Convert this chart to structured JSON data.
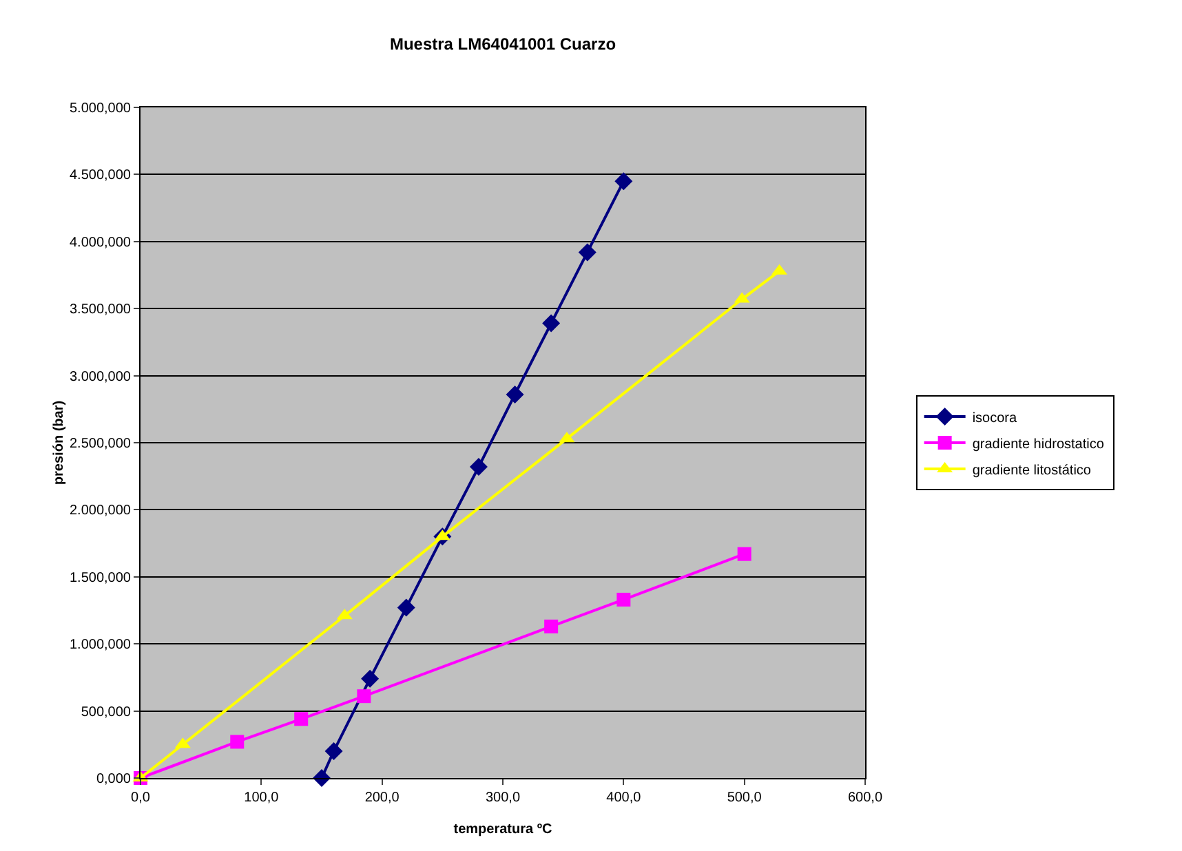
{
  "chart_data": {
    "type": "line",
    "title": "Muestra LM64041001 Cuarzo",
    "xlabel": "temperatura ºC",
    "ylabel": "presión (bar)",
    "xlim": [
      0,
      600
    ],
    "ylim": [
      0,
      5000
    ],
    "xticks": [
      {
        "value": 0,
        "label": "0,0"
      },
      {
        "value": 100,
        "label": "100,0"
      },
      {
        "value": 200,
        "label": "200,0"
      },
      {
        "value": 300,
        "label": "300,0"
      },
      {
        "value": 400,
        "label": "400,0"
      },
      {
        "value": 500,
        "label": "500,0"
      },
      {
        "value": 600,
        "label": "600,0"
      }
    ],
    "yticks": [
      {
        "value": 0,
        "label": "0,000"
      },
      {
        "value": 500,
        "label": "500,000"
      },
      {
        "value": 1000,
        "label": "1.000,000"
      },
      {
        "value": 1500,
        "label": "1.500,000"
      },
      {
        "value": 2000,
        "label": "2.000,000"
      },
      {
        "value": 2500,
        "label": "2.500,000"
      },
      {
        "value": 3000,
        "label": "3.000,000"
      },
      {
        "value": 3500,
        "label": "3.500,000"
      },
      {
        "value": 4000,
        "label": "4.000,000"
      },
      {
        "value": 4500,
        "label": "4.500,000"
      },
      {
        "value": 5000,
        "label": "5.000,000"
      }
    ],
    "grid": "y",
    "legend": "right",
    "line_style": "solid",
    "series": [
      {
        "name": "isocora",
        "color": "#000080",
        "marker": "diamond",
        "x": [
          150,
          160,
          190,
          220,
          250,
          280,
          310,
          340,
          370,
          400
        ],
        "values": [
          0,
          200,
          740,
          1270,
          1800,
          2320,
          2860,
          3390,
          3920,
          4450
        ]
      },
      {
        "name": "gradiente hidrostatico",
        "color": "#ff00ff",
        "marker": "square",
        "x": [
          0,
          80,
          133,
          185,
          340,
          400,
          500
        ],
        "values": [
          0,
          270,
          440,
          610,
          1130,
          1330,
          1670
        ]
      },
      {
        "name": "gradiente litostático",
        "color": "#ffff00",
        "marker": "triangle",
        "x": [
          0,
          35,
          169,
          250,
          353,
          498,
          529
        ],
        "values": [
          0,
          250,
          1210,
          1800,
          2530,
          3570,
          3780
        ]
      }
    ]
  }
}
